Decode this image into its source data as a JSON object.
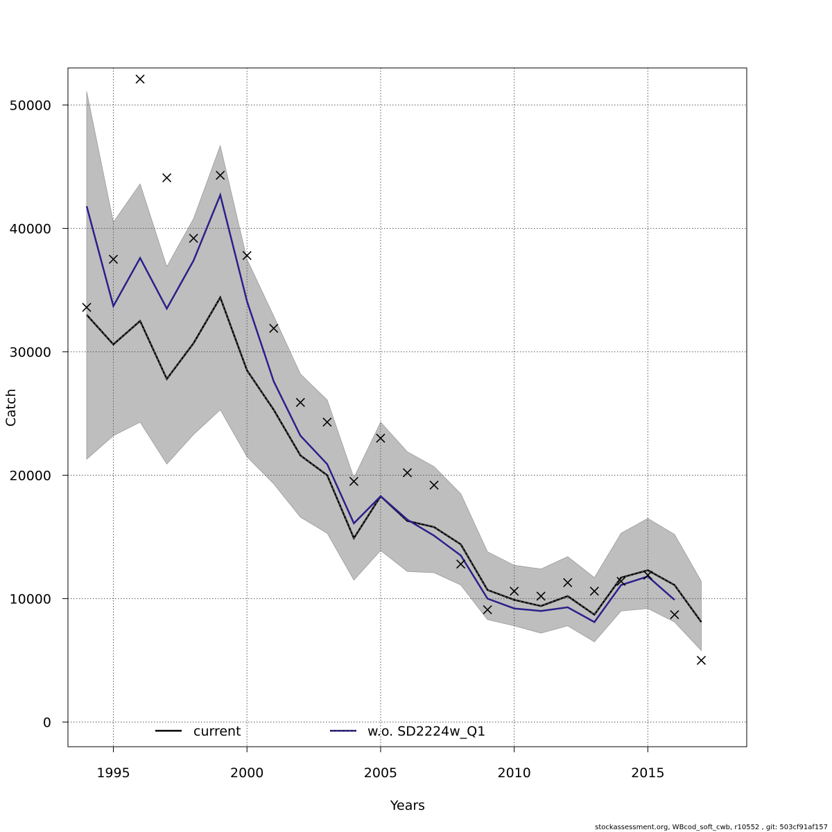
{
  "chart_data": {
    "type": "line",
    "xlabel": "Years",
    "ylabel": "Catch",
    "xlim": [
      1993.3,
      2018.7
    ],
    "ylim": [
      -2000,
      53000
    ],
    "x_ticks": [
      1995,
      2000,
      2005,
      2010,
      2015
    ],
    "y_ticks": [
      0,
      10000,
      20000,
      30000,
      40000,
      50000
    ],
    "grid": true,
    "legend_position": "bottom",
    "colors": {
      "band": "#bebebe",
      "current": "#000000",
      "alt": "#2a1f8a",
      "observed": "#000000"
    },
    "series": [
      {
        "name": "current",
        "x": [
          1994,
          1995,
          1996,
          1997,
          1998,
          1999,
          2000,
          2001,
          2002,
          2003,
          2004,
          2005,
          2006,
          2007,
          2008,
          2009,
          2010,
          2011,
          2012,
          2013,
          2014,
          2015,
          2016,
          2017
        ],
        "values": [
          33000,
          30600,
          32500,
          27800,
          30700,
          34400,
          28500,
          25300,
          21600,
          20000,
          14900,
          18300,
          16300,
          15800,
          14400,
          10700,
          9900,
          9400,
          10200,
          8700,
          11700,
          12300,
          11100,
          8100
        ]
      },
      {
        "name": "w.o. SD2224w_Q1",
        "x": [
          1994,
          1995,
          1996,
          1997,
          1998,
          1999,
          2000,
          2001,
          2002,
          2003,
          2004,
          2005,
          2006,
          2007,
          2008,
          2009,
          2010,
          2011,
          2012,
          2013,
          2014,
          2015,
          2016
        ],
        "values": [
          41800,
          33700,
          37600,
          33500,
          37400,
          42700,
          34100,
          27600,
          23200,
          20900,
          16100,
          18300,
          16400,
          15100,
          13500,
          10000,
          9200,
          9000,
          9300,
          8100,
          11100,
          11800,
          9900
        ]
      }
    ],
    "band": {
      "x": [
        1994,
        1995,
        1996,
        1997,
        1998,
        1999,
        2000,
        2001,
        2002,
        2003,
        2004,
        2005,
        2006,
        2007,
        2008,
        2009,
        2010,
        2011,
        2012,
        2013,
        2014,
        2015,
        2016,
        2017
      ],
      "lower": [
        21300,
        23200,
        24300,
        20900,
        23300,
        25300,
        21500,
        19300,
        16600,
        15300,
        11500,
        13900,
        12200,
        12100,
        11100,
        8300,
        7800,
        7200,
        7800,
        6500,
        9000,
        9200,
        8100,
        5800
      ],
      "upper": [
        51100,
        40500,
        43600,
        36900,
        40800,
        46700,
        37500,
        32900,
        28200,
        26100,
        19800,
        24300,
        21900,
        20700,
        18500,
        13800,
        12700,
        12400,
        13400,
        11700,
        15300,
        16500,
        15200,
        11400
      ]
    },
    "observed": {
      "x": [
        1994,
        1995,
        1996,
        1997,
        1998,
        1999,
        2000,
        2001,
        2002,
        2003,
        2004,
        2005,
        2006,
        2007,
        2008,
        2009,
        2010,
        2011,
        2012,
        2013,
        2014,
        2015,
        2016,
        2017
      ],
      "values": [
        33600,
        37500,
        52100,
        44100,
        39200,
        44300,
        37800,
        31900,
        25900,
        24300,
        19500,
        23000,
        20200,
        19200,
        12800,
        9100,
        10600,
        10200,
        11300,
        10600,
        11400,
        11900,
        8700,
        5000
      ]
    }
  },
  "legend": {
    "items": [
      "current",
      "w.o. SD2224w_Q1"
    ]
  },
  "footer_text": "stockassessment.org, WBcod_soft_cwb, r10552 , git: 503cf91af157"
}
